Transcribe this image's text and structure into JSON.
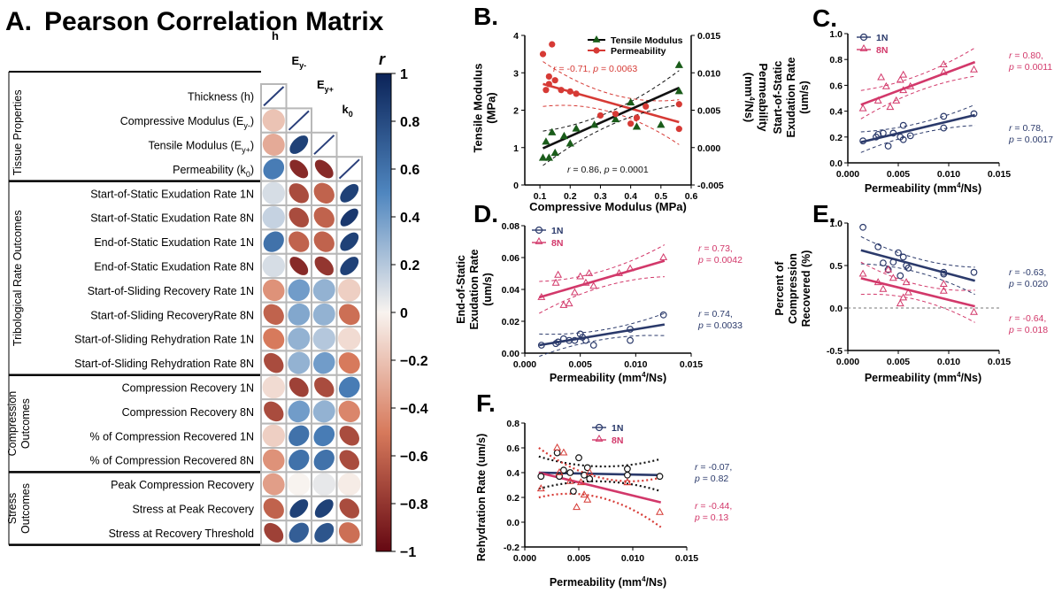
{
  "colors": {
    "navy": "#2b3a6b",
    "pink": "#d2386a",
    "red": "#d63a35",
    "black": "#111111",
    "green": "#1a5c1a",
    "gray": "#9a9a9a"
  },
  "panelA": {
    "label": "A.",
    "title": "Pearson Correlation Matrix",
    "columns": [
      "h",
      "E",
      "k"
    ],
    "column_subs": [
      "",
      "y-",
      "y+",
      "0"
    ],
    "rows": [
      "Thickness (h)",
      "Compressive Modulus (E",
      "Tensile Modulus (E",
      "Permeability (k",
      "Start-of-Static Exudation Rate 1N",
      "Start-of-Static Exudation Rate 8N",
      "End-of-Static Exudation Rate 1N",
      "End-of-Static Exudation Rate 8N",
      "Start-of-Sliding Recovery Rate 1N",
      "Start-of-Sliding RecoveryRate 8N",
      "Start-of-Sliding Rehydration Rate 1N",
      "Start-of-Sliding Rehydration Rate 8N",
      "Compression Recovery 1N",
      "Compression Recovery 8N",
      "% of Compression Recovered 1N",
      "% of Compression Recovered 8N",
      "Peak Compression Recovery",
      "Stress at Peak Recovery",
      "Stress at Recovery Threshold"
    ],
    "row_subs": [
      "",
      "y-",
      ")",
      "y+",
      ")",
      "0",
      ")"
    ],
    "groups": [
      "Tissue Properties",
      "Tribological Rate Outcomes",
      "Compression Outcomes",
      "Stress Outcomes"
    ],
    "colorbar": {
      "label": "r",
      "ticks": [
        "1",
        "0.8",
        "0.6",
        "0.4",
        "0.2",
        "0",
        "−0.2",
        "−0.4",
        "−0.6",
        "−0.8",
        "−1"
      ]
    },
    "matrix": [
      [
        1,
        null,
        null,
        null
      ],
      [
        -0.2,
        1,
        null,
        null
      ],
      [
        -0.3,
        0.85,
        1,
        null
      ],
      [
        0.55,
        -0.85,
        -0.85,
        1
      ],
      [
        0.1,
        -0.7,
        -0.6,
        0.85
      ],
      [
        0.15,
        -0.7,
        -0.6,
        0.9
      ],
      [
        0.6,
        -0.6,
        -0.6,
        0.85
      ],
      [
        0.1,
        -0.85,
        -0.8,
        0.85
      ],
      [
        -0.4,
        0.4,
        0.3,
        -0.15
      ],
      [
        -0.6,
        0.35,
        0.3,
        -0.55
      ],
      [
        -0.5,
        0.3,
        0.2,
        -0.1
      ],
      [
        -0.7,
        0.3,
        0.4,
        -0.5
      ],
      [
        -0.1,
        -0.75,
        -0.7,
        0.55
      ],
      [
        -0.7,
        0.4,
        0.3,
        -0.45
      ],
      [
        -0.15,
        0.6,
        0.55,
        -0.7
      ],
      [
        -0.4,
        0.6,
        0.6,
        -0.7
      ],
      [
        -0.35,
        0.0,
        0.05,
        -0.03
      ],
      [
        -0.6,
        0.85,
        0.85,
        -0.7
      ],
      [
        -0.75,
        0.7,
        0.75,
        -0.55
      ]
    ]
  },
  "panelB": {
    "label": "B.",
    "ylabel_left": [
      "Tensile Modulus",
      "(MPa)"
    ],
    "ylabel_right": "Permeability",
    "ylabel_right2": "(mm",
    "ylabel_right2_sup": "4",
    "ylabel_right2_tail": "/Ns)",
    "xlabel": "Compressive Modulus (MPa)",
    "xlim": [
      0.05,
      0.6
    ],
    "ylim_left": [
      0,
      4
    ],
    "ylim_right": [
      -0.005,
      0.015
    ],
    "xticks": [
      "0.1",
      "0.2",
      "0.3",
      "0.4",
      "0.5",
      "0.6"
    ],
    "yticks_left": [
      "0",
      "1",
      "2",
      "3",
      "4"
    ],
    "yticks_right": [
      "-0.005",
      "0.000",
      "0.005",
      "0.010",
      "0.015"
    ],
    "legend": [
      "Tensile Modulus",
      "Permeability"
    ],
    "stat_perm_r": "r = -0.71, ",
    "stat_perm_p": "p = 0.0063",
    "stat_ten_r": "r = 0.86, ",
    "stat_ten_p": "p = 0.0001",
    "tensile_points": [
      [
        0.11,
        0.72
      ],
      [
        0.13,
        0.72
      ],
      [
        0.12,
        1.15
      ],
      [
        0.15,
        0.85
      ],
      [
        0.14,
        1.4
      ],
      [
        0.18,
        1.3
      ],
      [
        0.2,
        1.1
      ],
      [
        0.22,
        1.5
      ],
      [
        0.28,
        1.6
      ],
      [
        0.35,
        1.75
      ],
      [
        0.4,
        2.2
      ],
      [
        0.42,
        1.55
      ],
      [
        0.5,
        1.6
      ],
      [
        0.56,
        2.5
      ],
      [
        0.56,
        3.2
      ]
    ],
    "permeability_points": [
      [
        0.11,
        0.0125
      ],
      [
        0.13,
        0.0095
      ],
      [
        0.14,
        0.0138
      ],
      [
        0.12,
        0.0077
      ],
      [
        0.15,
        0.009
      ],
      [
        0.13,
        0.0085
      ],
      [
        0.17,
        0.0077
      ],
      [
        0.2,
        0.0075
      ],
      [
        0.22,
        0.0072
      ],
      [
        0.3,
        0.0043
      ],
      [
        0.35,
        0.0045
      ],
      [
        0.4,
        0.0032
      ],
      [
        0.42,
        0.004
      ],
      [
        0.45,
        0.0055
      ],
      [
        0.56,
        0.0058
      ],
      [
        0.56,
        0.0025
      ]
    ],
    "tensile_fit": [
      [
        0.11,
        0.98
      ],
      [
        0.56,
        2.6
      ]
    ],
    "permeability_fit": [
      [
        0.11,
        0.0085
      ],
      [
        0.56,
        0.0034
      ]
    ]
  },
  "panelC": {
    "label": "C.",
    "ylabel": [
      "Start-of-Static",
      "Exudation Rate",
      "(um/s)"
    ],
    "xlabel": "Permeability (mm",
    "xlabel_sup": "4",
    "xlabel_tail": "/Ns)",
    "xlim": [
      0,
      0.015
    ],
    "ylim": [
      0,
      1.0
    ],
    "xticks": [
      "0.000",
      "0.005",
      "0.010",
      "0.015"
    ],
    "yticks": [
      "0.0",
      "0.2",
      "0.4",
      "0.6",
      "0.8",
      "1.0"
    ],
    "legend": [
      "1N",
      "8N"
    ],
    "stat8_r": "r = 0.80,",
    "stat8_p": "p = 0.0011",
    "stat1_r": "r = 0.78,",
    "stat1_p": "p = 0.0017",
    "pts_1N": [
      [
        0.0015,
        0.17
      ],
      [
        0.0028,
        0.2
      ],
      [
        0.003,
        0.22
      ],
      [
        0.0035,
        0.23
      ],
      [
        0.004,
        0.13
      ],
      [
        0.0045,
        0.23
      ],
      [
        0.0052,
        0.2
      ],
      [
        0.0055,
        0.29
      ],
      [
        0.0055,
        0.18
      ],
      [
        0.0062,
        0.21
      ],
      [
        0.0095,
        0.36
      ],
      [
        0.0095,
        0.27
      ],
      [
        0.0125,
        0.38
      ]
    ],
    "pts_8N": [
      [
        0.0015,
        0.42
      ],
      [
        0.003,
        0.48
      ],
      [
        0.0033,
        0.66
      ],
      [
        0.0038,
        0.59
      ],
      [
        0.0042,
        0.43
      ],
      [
        0.0048,
        0.48
      ],
      [
        0.0052,
        0.64
      ],
      [
        0.0055,
        0.68
      ],
      [
        0.0055,
        0.56
      ],
      [
        0.0062,
        0.59
      ],
      [
        0.0095,
        0.76
      ],
      [
        0.0095,
        0.7
      ],
      [
        0.0125,
        0.72
      ]
    ],
    "fit_1N": [
      [
        0.0013,
        0.16
      ],
      [
        0.0126,
        0.37
      ]
    ],
    "fit_8N": [
      [
        0.0013,
        0.45
      ],
      [
        0.0126,
        0.78
      ]
    ]
  },
  "panelD": {
    "label": "D.",
    "ylabel": [
      "End-of-Static",
      "Exudation Rate",
      "(um/s)"
    ],
    "xlabel": "Permeability (mm",
    "xlabel_sup": "4",
    "xlabel_tail": "/Ns)",
    "xlim": [
      0,
      0.015
    ],
    "ylim": [
      0,
      0.08
    ],
    "xticks": [
      "0.000",
      "0.005",
      "0.010",
      "0.015"
    ],
    "yticks": [
      "0.00",
      "0.02",
      "0.04",
      "0.06",
      "0.08"
    ],
    "legend": [
      "1N",
      "8N"
    ],
    "stat8_r": "r = 0.73,",
    "stat8_p": "p = 0.0042",
    "stat1_r": "r = 0.74,",
    "stat1_p": "p = 0.0033",
    "pts_1N": [
      [
        0.0015,
        0.005
      ],
      [
        0.0028,
        0.006
      ],
      [
        0.003,
        0.007
      ],
      [
        0.0035,
        0.009
      ],
      [
        0.004,
        0.008
      ],
      [
        0.0045,
        0.008
      ],
      [
        0.005,
        0.012
      ],
      [
        0.0052,
        0.01
      ],
      [
        0.0055,
        0.008
      ],
      [
        0.0062,
        0.005
      ],
      [
        0.0095,
        0.008
      ],
      [
        0.0095,
        0.015
      ],
      [
        0.0125,
        0.024
      ]
    ],
    "pts_8N": [
      [
        0.0015,
        0.035
      ],
      [
        0.0028,
        0.044
      ],
      [
        0.003,
        0.049
      ],
      [
        0.0035,
        0.03
      ],
      [
        0.004,
        0.031
      ],
      [
        0.0045,
        0.038
      ],
      [
        0.005,
        0.048
      ],
      [
        0.0055,
        0.044
      ],
      [
        0.0058,
        0.05
      ],
      [
        0.0062,
        0.042
      ],
      [
        0.0085,
        0.05
      ],
      [
        0.0095,
        0.053
      ],
      [
        0.0125,
        0.06
      ]
    ],
    "fit_1N": [
      [
        0.0013,
        0.005
      ],
      [
        0.0126,
        0.018
      ]
    ],
    "fit_8N": [
      [
        0.0013,
        0.035
      ],
      [
        0.0126,
        0.058
      ]
    ]
  },
  "panelE": {
    "label": "E.",
    "ylabel": [
      "Percent of",
      "Compression",
      "Recovered (%)"
    ],
    "xlabel": "Permeability (mm",
    "xlabel_sup": "4",
    "xlabel_tail": "/Ns)",
    "xlim": [
      0,
      0.015
    ],
    "ylim": [
      -0.5,
      1.0
    ],
    "xticks": [
      "0.000",
      "0.005",
      "0.010",
      "0.015"
    ],
    "yticks": [
      "-0.5",
      "0.0",
      "0.5",
      "1.0"
    ],
    "stat1_r": "r = -0.63,",
    "stat1_p": "p = 0.020",
    "stat8_r": "r = -0.64,",
    "stat8_p": "p = 0.018",
    "pts_1N": [
      [
        0.0015,
        0.95
      ],
      [
        0.003,
        0.72
      ],
      [
        0.0035,
        0.53
      ],
      [
        0.004,
        0.45
      ],
      [
        0.0045,
        0.54
      ],
      [
        0.005,
        0.65
      ],
      [
        0.0052,
        0.38
      ],
      [
        0.0055,
        0.6
      ],
      [
        0.0058,
        0.5
      ],
      [
        0.006,
        0.47
      ],
      [
        0.0095,
        0.42
      ],
      [
        0.0095,
        0.4
      ],
      [
        0.0125,
        0.42
      ]
    ],
    "pts_8N": [
      [
        0.0015,
        0.4
      ],
      [
        0.003,
        0.3
      ],
      [
        0.0035,
        0.22
      ],
      [
        0.004,
        0.45
      ],
      [
        0.0045,
        0.35
      ],
      [
        0.0052,
        0.05
      ],
      [
        0.0055,
        0.12
      ],
      [
        0.0058,
        0.3
      ],
      [
        0.006,
        0.18
      ],
      [
        0.0095,
        0.28
      ],
      [
        0.0095,
        0.2
      ],
      [
        0.0125,
        -0.05
      ]
    ],
    "fit_1N": [
      [
        0.0013,
        0.68
      ],
      [
        0.0126,
        0.32
      ]
    ],
    "fit_8N": [
      [
        0.0013,
        0.35
      ],
      [
        0.0126,
        0.02
      ]
    ]
  },
  "panelF": {
    "label": "F.",
    "ylabel": "Rehydration Rate (um/s)",
    "xlabel": "Permeability (mm",
    "xlabel_sup": "4",
    "xlabel_tail": "/Ns)",
    "xlim": [
      0,
      0.015
    ],
    "ylim": [
      -0.2,
      0.8
    ],
    "xticks": [
      "0.000",
      "0.005",
      "0.010",
      "0.015"
    ],
    "yticks": [
      "-0.2",
      "0.0",
      "0.2",
      "0.4",
      "0.6",
      "0.8"
    ],
    "legend": [
      "1N",
      "8N"
    ],
    "stat1_r": "r = -0.07,",
    "stat1_p": "p = 0.82",
    "stat8_r": "r = -0.44,",
    "stat8_p": "p = 0.13",
    "pts_1N": [
      [
        0.0015,
        0.37
      ],
      [
        0.003,
        0.56
      ],
      [
        0.0032,
        0.37
      ],
      [
        0.0036,
        0.42
      ],
      [
        0.0042,
        0.4
      ],
      [
        0.0045,
        0.25
      ],
      [
        0.005,
        0.52
      ],
      [
        0.0055,
        0.38
      ],
      [
        0.0058,
        0.44
      ],
      [
        0.006,
        0.35
      ],
      [
        0.0095,
        0.38
      ],
      [
        0.0095,
        0.43
      ],
      [
        0.0125,
        0.37
      ]
    ],
    "pts_8N": [
      [
        0.0015,
        0.27
      ],
      [
        0.003,
        0.6
      ],
      [
        0.0032,
        0.4
      ],
      [
        0.0036,
        0.56
      ],
      [
        0.0042,
        0.33
      ],
      [
        0.0048,
        0.12
      ],
      [
        0.0052,
        0.32
      ],
      [
        0.0055,
        0.22
      ],
      [
        0.0058,
        0.18
      ],
      [
        0.006,
        0.4
      ],
      [
        0.0095,
        0.32
      ],
      [
        0.0095,
        0.32
      ],
      [
        0.0125,
        0.08
      ]
    ],
    "fit_1N": [
      [
        0.0013,
        0.4
      ],
      [
        0.0126,
        0.38
      ]
    ],
    "fit_8N": [
      [
        0.0013,
        0.4
      ],
      [
        0.0126,
        0.16
      ]
    ]
  },
  "chart_data": [
    {
      "type": "heatmap",
      "title": "Pearson Correlation Matrix",
      "note": "values in panelA.matrix (r, -1 to 1)"
    },
    {
      "type": "scatter",
      "title": "B",
      "xlabel": "Compressive Modulus (MPa)",
      "series": [
        {
          "name": "Tensile Modulus"
        },
        {
          "name": "Permeability"
        }
      ]
    },
    {
      "type": "scatter",
      "title": "C",
      "xlabel": "Permeability (mm4/Ns)",
      "series": [
        {
          "name": "1N"
        },
        {
          "name": "8N"
        }
      ]
    },
    {
      "type": "scatter",
      "title": "D",
      "xlabel": "Permeability (mm4/Ns)",
      "series": [
        {
          "name": "1N"
        },
        {
          "name": "8N"
        }
      ]
    },
    {
      "type": "scatter",
      "title": "E",
      "xlabel": "Permeability (mm4/Ns)",
      "series": [
        {
          "name": "1N"
        },
        {
          "name": "8N"
        }
      ]
    },
    {
      "type": "scatter",
      "title": "F",
      "xlabel": "Permeability (mm4/Ns)",
      "series": [
        {
          "name": "1N"
        },
        {
          "name": "8N"
        }
      ]
    }
  ]
}
